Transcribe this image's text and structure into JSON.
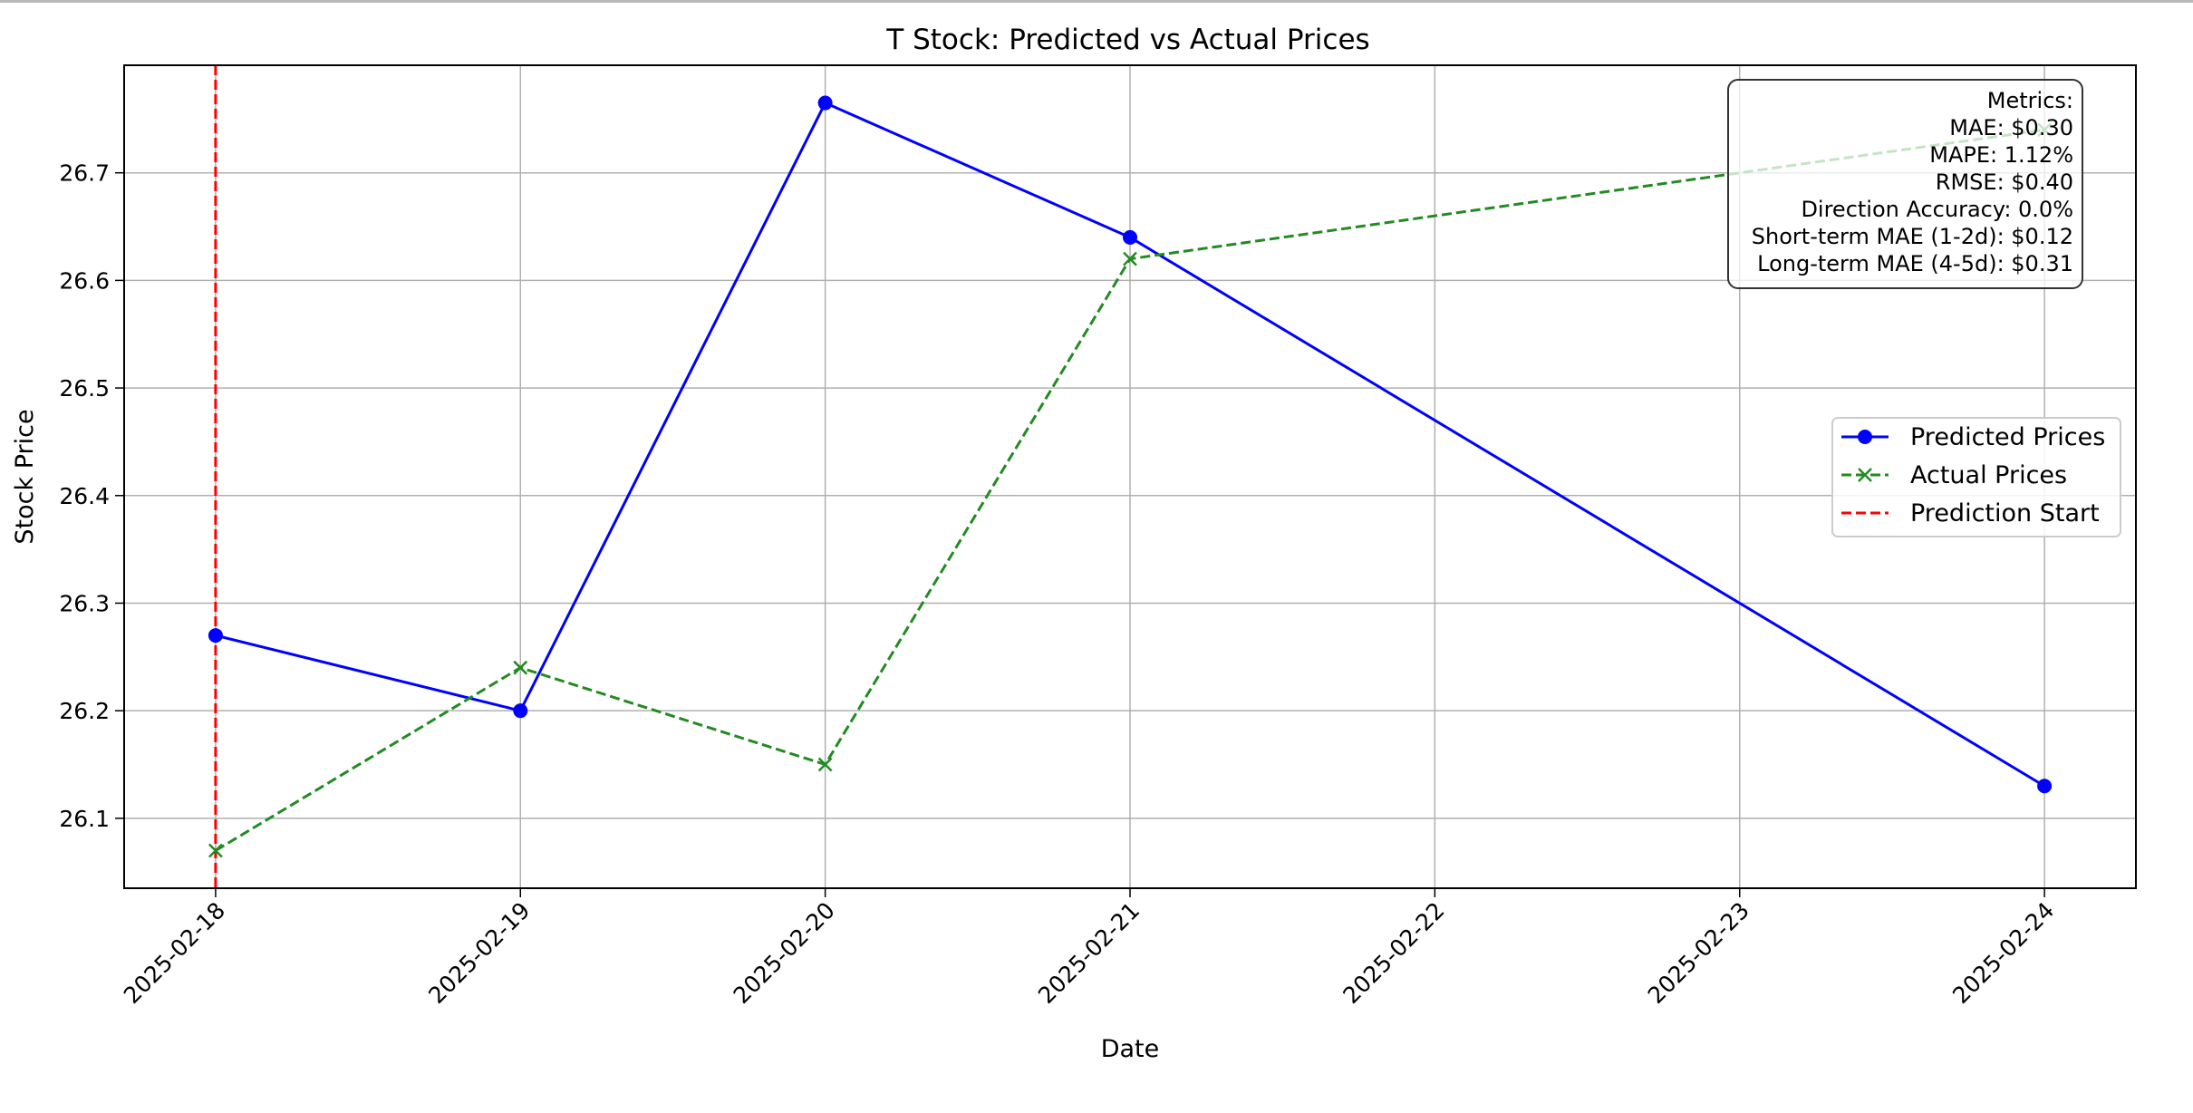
{
  "chart_data": {
    "type": "line",
    "title": "T Stock: Predicted vs Actual Prices",
    "xlabel": "Date",
    "ylabel": "Stock Price",
    "x_ticks": [
      "2025-02-18",
      "2025-02-19",
      "2025-02-20",
      "2025-02-21",
      "2025-02-22",
      "2025-02-23",
      "2025-02-24"
    ],
    "xlim": [
      "2025-02-17.7",
      "2025-02-24.3"
    ],
    "y_ticks": [
      "26.1",
      "26.2",
      "26.3",
      "26.4",
      "26.5",
      "26.6",
      "26.7"
    ],
    "ylim": [
      26.035,
      26.8
    ],
    "grid": true,
    "legend_position": "center-right",
    "series": [
      {
        "name": "Predicted Prices",
        "color": "#0000ff",
        "line_style": "solid",
        "marker": "circle",
        "points": [
          {
            "date": "2025-02-18",
            "value": 26.27
          },
          {
            "date": "2025-02-19",
            "value": 26.2
          },
          {
            "date": "2025-02-20",
            "value": 26.765
          },
          {
            "date": "2025-02-21",
            "value": 26.64
          },
          {
            "date": "2025-02-24",
            "value": 26.13
          }
        ]
      },
      {
        "name": "Actual Prices",
        "color": "#228b22",
        "line_style": "dashed",
        "marker": "x",
        "points": [
          {
            "date": "2025-02-18",
            "value": 26.07
          },
          {
            "date": "2025-02-19",
            "value": 26.24
          },
          {
            "date": "2025-02-20",
            "value": 26.15
          },
          {
            "date": "2025-02-21",
            "value": 26.62
          },
          {
            "date": "2025-02-24",
            "value": 26.74
          }
        ]
      }
    ],
    "vline": {
      "name": "Prediction Start",
      "date": "2025-02-18",
      "color": "#ff0000",
      "line_style": "dashed"
    },
    "metrics_box": {
      "position": "top-right",
      "lines": [
        "Metrics:",
        "MAE: $0.30",
        "MAPE: 1.12%",
        "RMSE: $0.40",
        "Direction Accuracy: 0.0%",
        "Short-term MAE (1-2d): $0.12",
        "Long-term MAE (4-5d): $0.31"
      ]
    }
  }
}
